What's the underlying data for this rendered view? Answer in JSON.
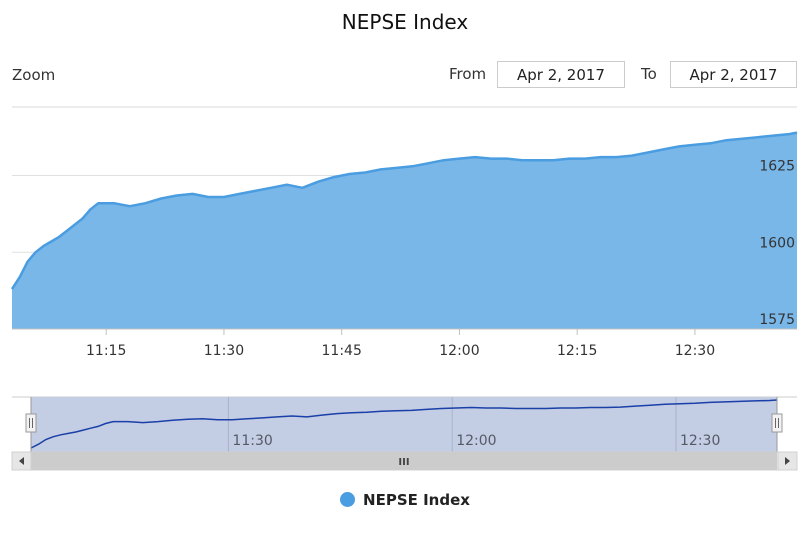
{
  "chart_data": {
    "type": "area",
    "title": "NEPSE Index",
    "series": [
      {
        "name": "NEPSE Index",
        "color": "#4a9de0",
        "fill": "#79b7e8",
        "x": [
          "11:03",
          "11:04",
          "11:05",
          "11:06",
          "11:07",
          "11:08",
          "11:09",
          "11:10",
          "11:11",
          "11:12",
          "11:13",
          "11:14",
          "11:16",
          "11:18",
          "11:20",
          "11:22",
          "11:24",
          "11:26",
          "11:28",
          "11:30",
          "11:32",
          "11:34",
          "11:36",
          "11:38",
          "11:40",
          "11:42",
          "11:44",
          "11:46",
          "11:48",
          "11:50",
          "11:52",
          "11:54",
          "11:56",
          "11:58",
          "12:00",
          "12:02",
          "12:04",
          "12:06",
          "12:08",
          "12:10",
          "12:12",
          "12:14",
          "12:16",
          "12:18",
          "12:20",
          "12:22",
          "12:24",
          "12:26",
          "12:28",
          "12:30",
          "12:32",
          "12:34",
          "12:36",
          "12:38",
          "12:40",
          "12:42",
          "12:43"
        ],
        "values": [
          1588,
          1592,
          1597,
          1600,
          1602,
          1603.5,
          1605,
          1607,
          1609,
          1611,
          1614,
          1616,
          1616,
          1615,
          1616,
          1617.5,
          1618.5,
          1619,
          1618,
          1618,
          1619,
          1620,
          1621,
          1622,
          1621,
          1623,
          1624.5,
          1625.5,
          1626,
          1627,
          1627.5,
          1628,
          1629,
          1630,
          1630.5,
          1631,
          1630.5,
          1630.5,
          1630,
          1630,
          1630,
          1630.5,
          1630.5,
          1631,
          1631,
          1631.5,
          1632.5,
          1633.5,
          1634.5,
          1635,
          1635.5,
          1636.5,
          1637,
          1637.5,
          1638,
          1638.5,
          1639
        ]
      }
    ],
    "x_ticks": [
      "11:15",
      "11:30",
      "11:45",
      "12:00",
      "12:15",
      "12:30"
    ],
    "y_ticks": [
      1575,
      1600,
      1625
    ],
    "ylim": [
      1575,
      1647
    ],
    "xlim": [
      "11:03",
      "12:43"
    ],
    "grid": true,
    "legend": "bottom-center"
  },
  "zoom_label": "Zoom",
  "range_selector": {
    "from_label": "From",
    "from_value": "Apr 2, 2017",
    "to_label": "To",
    "to_value": "Apr 2, 2017"
  },
  "navigator": {
    "ticks": [
      "11:30",
      "12:00",
      "12:30"
    ],
    "scrollbar_grip": "III"
  },
  "legend": {
    "label": "NEPSE Index"
  },
  "colors": {
    "line": "#4a9de0",
    "area": "#79b7e8",
    "navigator_line": "#1a3fa8",
    "navigator_mask": "#c3cde3"
  }
}
